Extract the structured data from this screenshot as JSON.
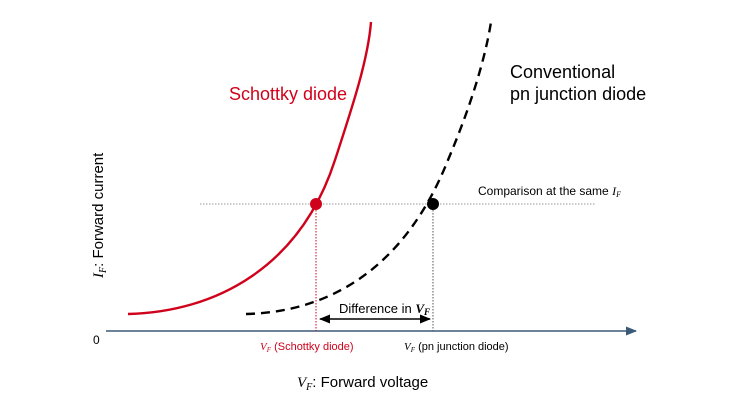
{
  "chart_data": {
    "type": "line",
    "title": "",
    "origin_label": "0",
    "xlabel": {
      "symbol": "V",
      "sub": "F",
      "text": ": Forward voltage"
    },
    "ylabel": {
      "symbol": "I",
      "sub": "F",
      "text": ": Forward current"
    },
    "series": [
      {
        "name": "Schottky diode",
        "color": "#d0021b",
        "style": "solid"
      },
      {
        "name_line1": "Conventional",
        "name_line2": "pn junction diode",
        "color": "#000000",
        "style": "dashed"
      }
    ],
    "comparison_label": {
      "text": "Comparison at the same ",
      "symbol": "I",
      "sub": "F"
    },
    "difference_label": {
      "text": "Difference in ",
      "symbol": "V",
      "sub": "F"
    },
    "tick_labels": [
      {
        "symbol": "V",
        "sub": "F",
        "text": " (Schottky diode)",
        "color": "#d0021b"
      },
      {
        "symbol": "V",
        "sub": "F",
        "text": " (pn junction diode)",
        "color": "#000000"
      }
    ],
    "axis_color": "#3b5a78"
  }
}
